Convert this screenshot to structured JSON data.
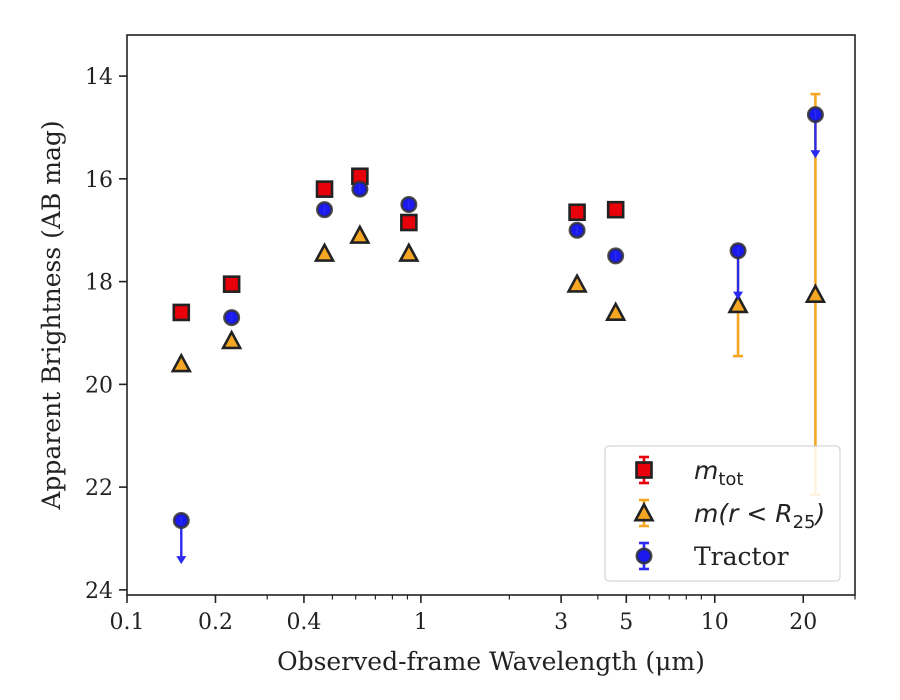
{
  "chart_data": {
    "type": "scatter",
    "xscale": "log",
    "xlim": [
      0.1,
      30
    ],
    "ylim": [
      24.1,
      13.2
    ],
    "y_inverted": true,
    "xlabel": "Observed-frame Wavelength (μm)",
    "ylabel": "Apparent Brightness (AB mag)",
    "x_tick_labels": [
      {
        "value": 0.1,
        "label": "0.1"
      },
      {
        "value": 0.2,
        "label": "0.2"
      },
      {
        "value": 0.4,
        "label": "0.4"
      },
      {
        "value": 1,
        "label": "1"
      },
      {
        "value": 3,
        "label": "3"
      },
      {
        "value": 5,
        "label": "5"
      },
      {
        "value": 10,
        "label": "10"
      },
      {
        "value": 20,
        "label": "20"
      }
    ],
    "x_minor_ticks": [
      0.3,
      0.5,
      0.6,
      0.7,
      0.8,
      0.9,
      2,
      4,
      6,
      7,
      8,
      9,
      30
    ],
    "y_tick_labels": [
      {
        "value": 14,
        "label": "14"
      },
      {
        "value": 16,
        "label": "16"
      },
      {
        "value": 18,
        "label": "18"
      },
      {
        "value": 20,
        "label": "20"
      },
      {
        "value": 22,
        "label": "22"
      },
      {
        "value": 24,
        "label": "24"
      }
    ],
    "legend_position": "lower-right",
    "series": [
      {
        "key": "mtot",
        "legend_main": "m",
        "legend_sub": "tot",
        "marker": "square",
        "color": "#e8000b",
        "errcolor": "#e8000b",
        "points": [
          {
            "x": 0.153,
            "y": 18.6
          },
          {
            "x": 0.227,
            "y": 18.05
          },
          {
            "x": 0.47,
            "y": 16.2
          },
          {
            "x": 0.62,
            "y": 15.95
          },
          {
            "x": 0.91,
            "y": 16.85
          },
          {
            "x": 3.4,
            "y": 16.65
          },
          {
            "x": 4.6,
            "y": 16.6
          }
        ]
      },
      {
        "key": "mr25",
        "legend_main": "m(r < R",
        "legend_sub": "25",
        "legend_tail": ")",
        "marker": "triangle",
        "color": "#f5a623",
        "errcolor": "#f5a623",
        "points": [
          {
            "x": 0.153,
            "y": 19.6
          },
          {
            "x": 0.227,
            "y": 19.15
          },
          {
            "x": 0.47,
            "y": 17.45
          },
          {
            "x": 0.62,
            "y": 17.1
          },
          {
            "x": 0.91,
            "y": 17.45
          },
          {
            "x": 3.4,
            "y": 18.05
          },
          {
            "x": 4.6,
            "y": 18.6
          },
          {
            "x": 12.0,
            "y": 18.45,
            "err_lo": 17.3,
            "err_hi": 19.45
          },
          {
            "x": 22.0,
            "y": 18.25,
            "err_lo": 14.35,
            "err_hi": 22.15
          }
        ]
      },
      {
        "key": "tractor",
        "legend_main": "Tractor",
        "marker": "circle",
        "color": "#1a1aee",
        "errcolor": "#2a2af0",
        "points": [
          {
            "x": 0.153,
            "y": 22.65,
            "upper_limit": true,
            "arrow_to": 23.5
          },
          {
            "x": 0.227,
            "y": 18.7
          },
          {
            "x": 0.47,
            "y": 16.6
          },
          {
            "x": 0.62,
            "y": 16.2
          },
          {
            "x": 0.91,
            "y": 16.5
          },
          {
            "x": 3.4,
            "y": 17.0
          },
          {
            "x": 4.6,
            "y": 17.5
          },
          {
            "x": 12.0,
            "y": 17.4,
            "upper_limit": true,
            "arrow_to": 18.35
          },
          {
            "x": 22.0,
            "y": 14.75,
            "upper_limit": true,
            "arrow_to": 15.6
          }
        ]
      }
    ]
  }
}
